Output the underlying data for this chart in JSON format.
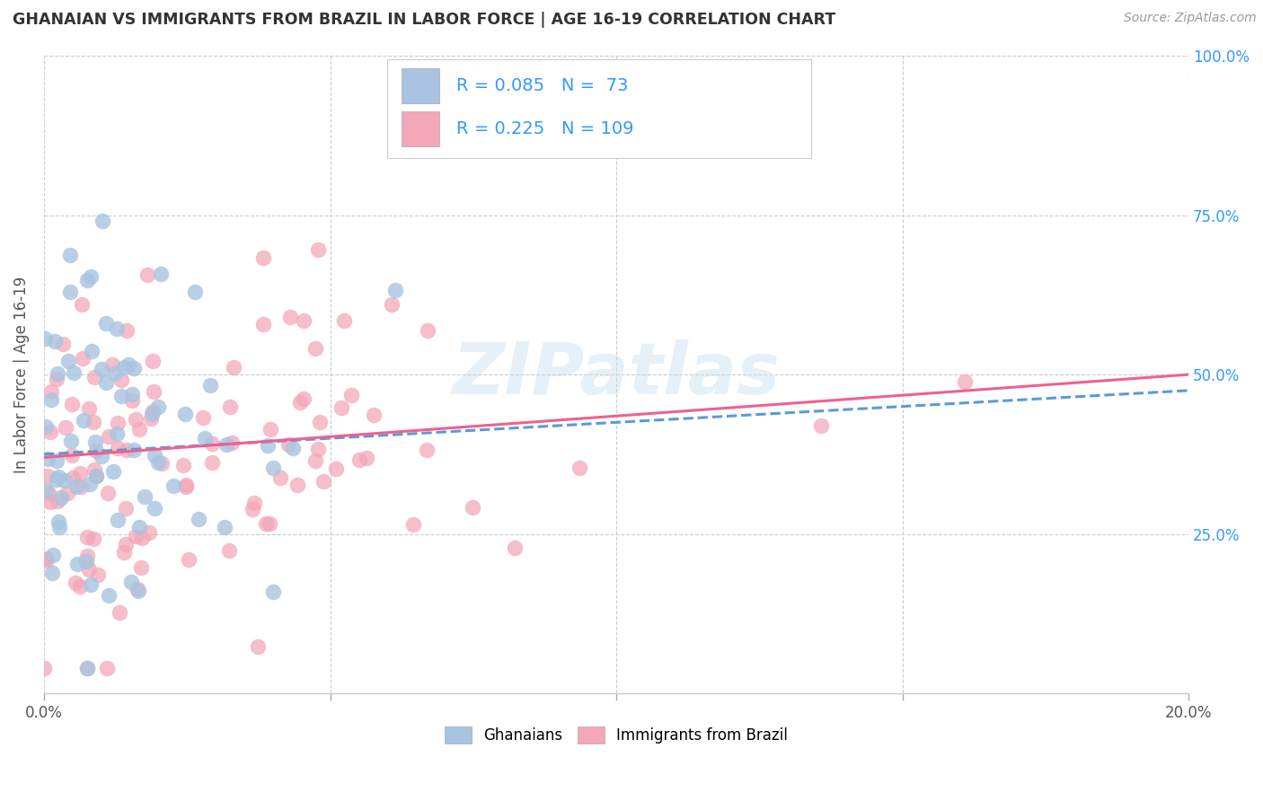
{
  "title": "GHANAIAN VS IMMIGRANTS FROM BRAZIL IN LABOR FORCE | AGE 16-19 CORRELATION CHART",
  "source": "Source: ZipAtlas.com",
  "ylabel": "In Labor Force | Age 16-19",
  "xlim": [
    0.0,
    0.2
  ],
  "ylim": [
    0.0,
    1.0
  ],
  "y_ticks_right": [
    0.25,
    0.5,
    0.75,
    1.0
  ],
  "y_tick_labels_right": [
    "25.0%",
    "50.0%",
    "75.0%",
    "100.0%"
  ],
  "watermark": "ZIPatlas",
  "legend_labels": [
    "Ghanaians",
    "Immigrants from Brazil"
  ],
  "ghanaian_color": "#a8c4e0",
  "brazil_color": "#f4a7b9",
  "ghanaian_line_color": "#5b9bd5",
  "brazil_line_color": "#f06090",
  "R_ghanaian": 0.085,
  "N_ghanaian": 73,
  "R_brazil": 0.225,
  "N_brazil": 109,
  "legend_text_color": "#3399ff",
  "right_axis_color": "#3399ff",
  "title_color": "#333333",
  "source_color": "#999999",
  "grid_color": "#cccccc",
  "ylabel_color": "#555555"
}
